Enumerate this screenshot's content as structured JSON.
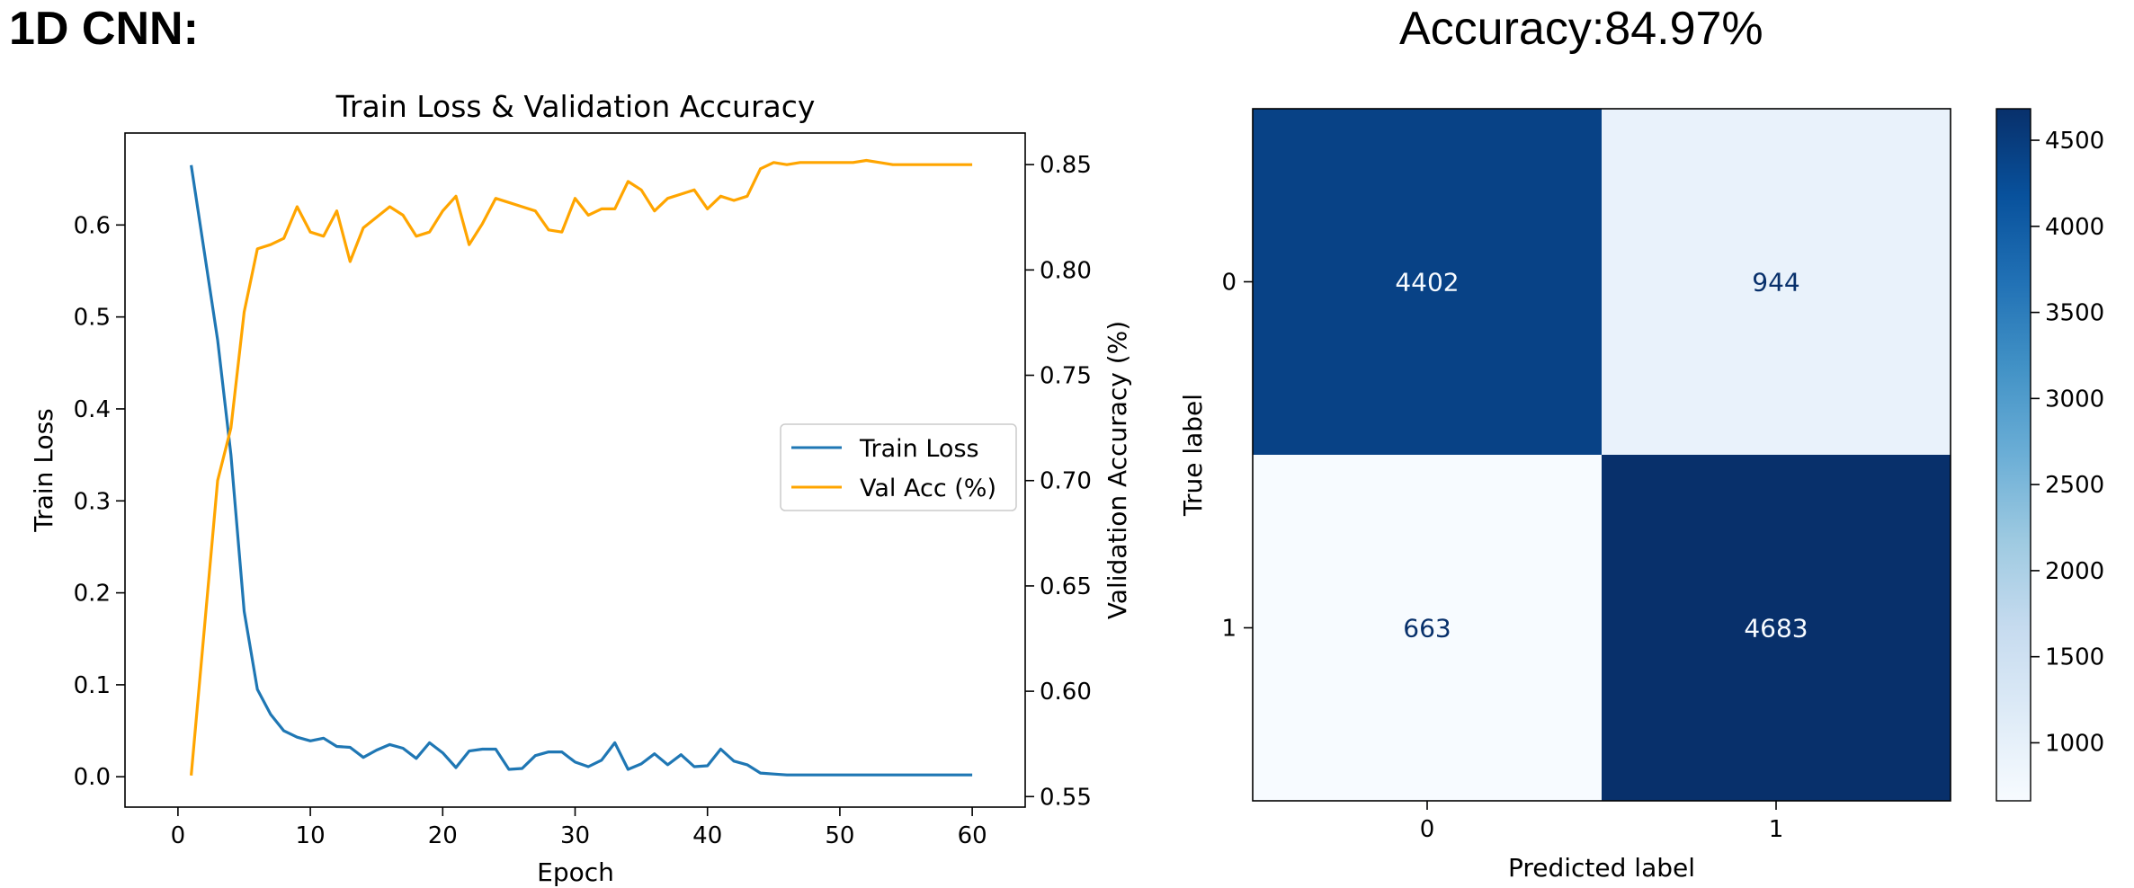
{
  "heading": "1D CNN:",
  "accuracy_label": "Accuracy:84.97%",
  "chart_data": [
    {
      "type": "line",
      "title": "Train Loss & Validation Accuracy",
      "xlabel": "Epoch",
      "ylabel": "Train Loss",
      "y2label": "Validation Accuracy (%)",
      "xlim": [
        -4,
        64
      ],
      "ylim": [
        -0.033,
        0.7
      ],
      "y2lim": [
        0.545,
        0.865
      ],
      "xticks": [
        0,
        10,
        20,
        30,
        40,
        50,
        60
      ],
      "yticks": [
        0.0,
        0.1,
        0.2,
        0.3,
        0.4,
        0.5,
        0.6
      ],
      "y2ticks": [
        0.55,
        0.6,
        0.65,
        0.7,
        0.75,
        0.8,
        0.85
      ],
      "legend_position": "center-right",
      "grid": false,
      "x": [
        1,
        2,
        3,
        4,
        5,
        6,
        7,
        8,
        9,
        10,
        11,
        12,
        13,
        14,
        15,
        16,
        17,
        18,
        19,
        20,
        21,
        22,
        23,
        24,
        25,
        26,
        27,
        28,
        29,
        30,
        31,
        32,
        33,
        34,
        35,
        36,
        37,
        38,
        39,
        40,
        41,
        42,
        43,
        44,
        45,
        46,
        47,
        48,
        49,
        50,
        51,
        52,
        53,
        54,
        55,
        56,
        57,
        58,
        59,
        60
      ],
      "series": [
        {
          "name": "Train Loss",
          "axis": "left",
          "color": "#1f77b4",
          "values": [
            0.665,
            0.57,
            0.475,
            0.35,
            0.18,
            0.095,
            0.068,
            0.05,
            0.043,
            0.039,
            0.042,
            0.033,
            0.032,
            0.021,
            0.029,
            0.035,
            0.031,
            0.02,
            0.037,
            0.026,
            0.01,
            0.028,
            0.03,
            0.03,
            0.008,
            0.009,
            0.023,
            0.027,
            0.027,
            0.016,
            0.011,
            0.018,
            0.037,
            0.008,
            0.014,
            0.025,
            0.013,
            0.024,
            0.011,
            0.012,
            0.03,
            0.017,
            0.013,
            0.004,
            0.003,
            0.002,
            0.002,
            0.002,
            0.002,
            0.002,
            0.002,
            0.002,
            0.002,
            0.002,
            0.002,
            0.002,
            0.002,
            0.002,
            0.002,
            0.002
          ]
        },
        {
          "name": "Val Acc (%)",
          "axis": "right",
          "color": "#ffa500",
          "values": [
            0.56,
            0.63,
            0.7,
            0.725,
            0.78,
            0.81,
            0.812,
            0.815,
            0.83,
            0.818,
            0.816,
            0.828,
            0.804,
            0.82,
            0.825,
            0.83,
            0.826,
            0.816,
            0.818,
            0.828,
            0.835,
            0.812,
            0.822,
            0.834,
            0.832,
            0.83,
            0.828,
            0.819,
            0.818,
            0.834,
            0.826,
            0.829,
            0.829,
            0.842,
            0.838,
            0.828,
            0.834,
            0.836,
            0.838,
            0.829,
            0.835,
            0.833,
            0.835,
            0.848,
            0.851,
            0.85,
            0.851,
            0.851,
            0.851,
            0.851,
            0.851,
            0.852,
            0.851,
            0.85,
            0.85,
            0.85,
            0.85,
            0.85,
            0.85,
            0.85
          ]
        }
      ]
    },
    {
      "type": "heatmap",
      "xlabel": "Predicted label",
      "ylabel": "True label",
      "x_categories": [
        "0",
        "1"
      ],
      "y_categories": [
        "0",
        "1"
      ],
      "values": [
        [
          4402,
          944
        ],
        [
          663,
          4683
        ]
      ],
      "colormap": "Blues",
      "colorbar_range": [
        663,
        4683
      ],
      "colorbar_ticks": [
        1000,
        1500,
        2000,
        2500,
        3000,
        3500,
        4000,
        4500
      ]
    }
  ]
}
